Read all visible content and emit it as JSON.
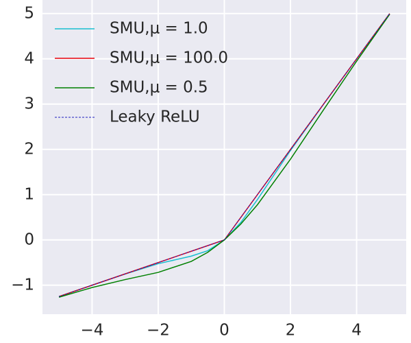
{
  "chart_data": {
    "type": "line",
    "x": [
      -5,
      -4,
      -3,
      -2,
      -1,
      -0.5,
      0,
      0.5,
      1,
      2,
      3,
      4,
      5
    ],
    "series": [
      {
        "name": "SMU,μ = 1.0",
        "color": "#17becf",
        "dash": false,
        "values": [
          -1.25,
          -1.0,
          -0.752,
          -0.525,
          -0.358,
          -0.237,
          0,
          0.388,
          0.892,
          1.975,
          2.998,
          4.0,
          5.0
        ]
      },
      {
        "name": "SMU,μ = 100.0",
        "color": "#e8000b",
        "dash": false,
        "values": [
          -1.25,
          -1.0,
          -0.75,
          -0.5,
          -0.25,
          -0.125,
          0,
          0.5,
          1.0,
          2.0,
          3.0,
          4.0,
          5.0
        ]
      },
      {
        "name": "SMU,μ = 0.5",
        "color": "#008000",
        "dash": false,
        "values": [
          -1.265,
          -1.051,
          -0.876,
          -0.717,
          -0.474,
          -0.273,
          0,
          0.352,
          0.777,
          1.783,
          2.875,
          3.949,
          4.985
        ]
      },
      {
        "name": "Leaky ReLU",
        "color": "#1f1fbf",
        "dash": true,
        "values": [
          -1.25,
          -1.0,
          -0.75,
          -0.5,
          -0.25,
          -0.125,
          0,
          0.5,
          1.0,
          2.0,
          3.0,
          4.0,
          5.0
        ]
      }
    ],
    "xlim": [
      -5.5,
      5.5
    ],
    "ylim": [
      -1.64,
      5.3
    ],
    "xticks": [
      {
        "value": -4,
        "label": "−4"
      },
      {
        "value": -2,
        "label": "−2"
      },
      0,
      2,
      4
    ],
    "yticks": [
      {
        "value": -1,
        "label": "−1"
      },
      0,
      1,
      2,
      3,
      4,
      5
    ],
    "grid": true,
    "legend": "upper left"
  }
}
